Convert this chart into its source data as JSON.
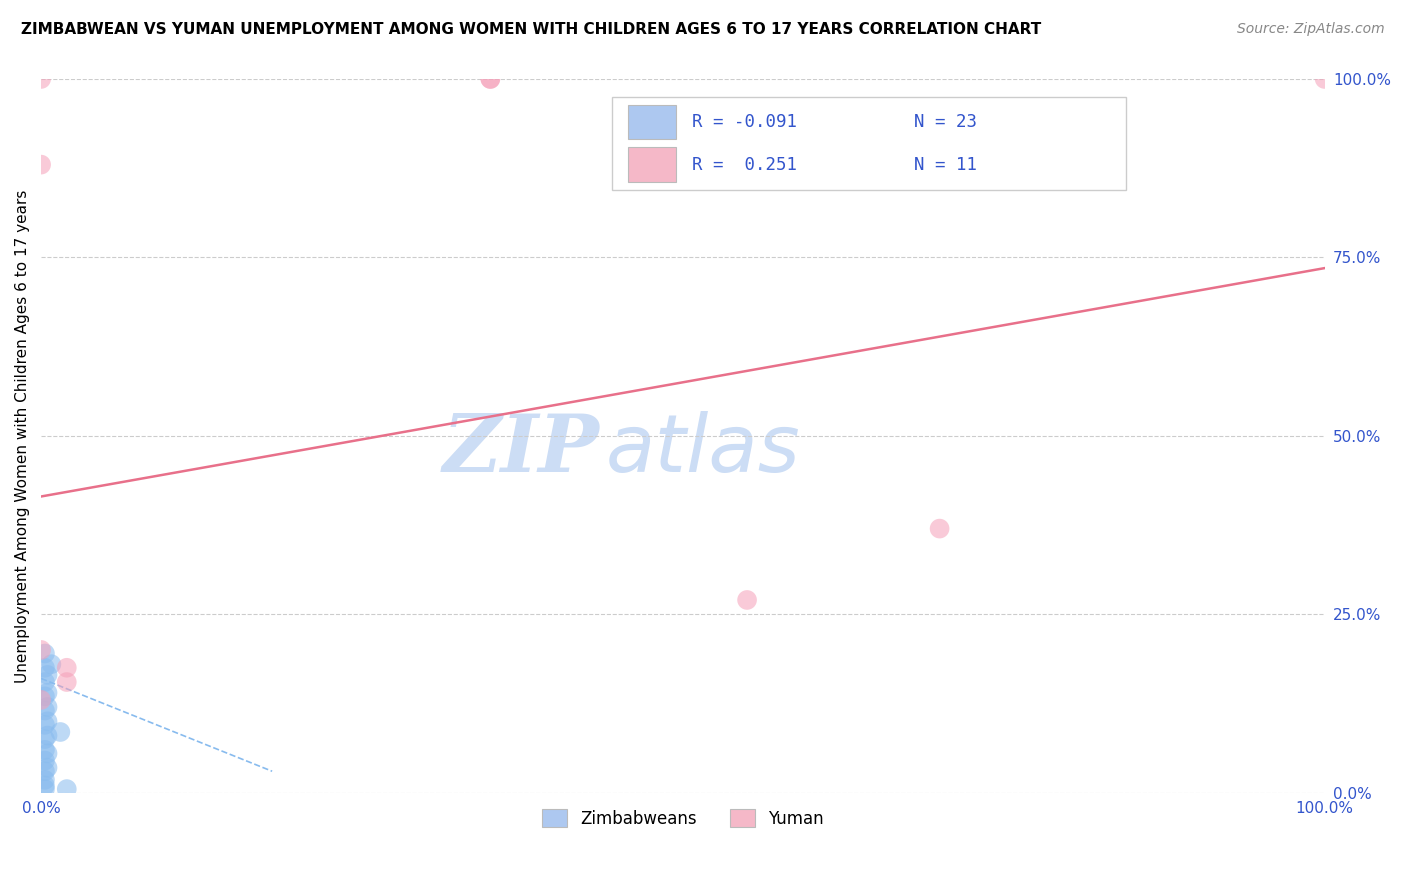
{
  "title": "ZIMBABWEAN VS YUMAN UNEMPLOYMENT AMONG WOMEN WITH CHILDREN AGES 6 TO 17 YEARS CORRELATION CHART",
  "source": "Source: ZipAtlas.com",
  "ylabel_label": "Unemployment Among Women with Children Ages 6 to 17 years",
  "ytick_labels": [
    "0.0%",
    "25.0%",
    "50.0%",
    "75.0%",
    "100.0%"
  ],
  "ytick_values": [
    0.0,
    0.25,
    0.5,
    0.75,
    1.0
  ],
  "xlim": [
    0.0,
    1.0
  ],
  "ylim": [
    0.0,
    1.0
  ],
  "legend_entries": [
    {
      "label_r": "R = -0.091",
      "label_n": "N = 23",
      "color": "#adc8f0"
    },
    {
      "label_r": "R =  0.251",
      "label_n": "N = 11",
      "color": "#f5b8c8"
    }
  ],
  "legend_bottom_labels": [
    "Zimbabweans",
    "Yuman"
  ],
  "legend_bottom_colors": [
    "#adc8f0",
    "#f5b8c8"
  ],
  "watermark_zip": "ZIP",
  "watermark_atlas": "atlas",
  "watermark_color": "#ccddf5",
  "grid_color": "#cccccc",
  "grid_style": "--",
  "zimbabwean_points": [
    [
      0.003,
      0.195
    ],
    [
      0.003,
      0.175
    ],
    [
      0.003,
      0.155
    ],
    [
      0.003,
      0.135
    ],
    [
      0.003,
      0.115
    ],
    [
      0.003,
      0.095
    ],
    [
      0.003,
      0.075
    ],
    [
      0.003,
      0.06
    ],
    [
      0.003,
      0.045
    ],
    [
      0.003,
      0.03
    ],
    [
      0.003,
      0.018
    ],
    [
      0.003,
      0.01
    ],
    [
      0.003,
      0.005
    ],
    [
      0.005,
      0.165
    ],
    [
      0.005,
      0.14
    ],
    [
      0.005,
      0.12
    ],
    [
      0.005,
      0.1
    ],
    [
      0.005,
      0.08
    ],
    [
      0.005,
      0.055
    ],
    [
      0.005,
      0.035
    ],
    [
      0.008,
      0.18
    ],
    [
      0.015,
      0.085
    ],
    [
      0.02,
      0.005
    ]
  ],
  "yuman_points": [
    [
      0.0,
      0.88
    ],
    [
      0.35,
      1.0
    ],
    [
      0.0,
      1.0
    ],
    [
      0.0,
      0.2
    ],
    [
      0.02,
      0.175
    ],
    [
      0.02,
      0.155
    ],
    [
      0.55,
      0.27
    ],
    [
      0.7,
      0.37
    ],
    [
      1.0,
      1.0
    ],
    [
      0.35,
      1.0
    ],
    [
      0.0,
      0.13
    ]
  ],
  "zimbabwean_line": {
    "x": [
      0.0,
      0.18
    ],
    "y": [
      0.16,
      0.03
    ],
    "color": "#88bbee",
    "style": "--",
    "lw": 1.2
  },
  "yuman_line": {
    "x": [
      0.0,
      1.0
    ],
    "y": [
      0.415,
      0.735
    ],
    "color": "#e8708a",
    "style": "-",
    "lw": 1.8
  },
  "dot_size": 200,
  "dot_alpha": 0.55,
  "zimbabwean_color": "#88bbee",
  "yuman_color": "#f5a0b8",
  "title_fontsize": 11,
  "source_fontsize": 10,
  "axis_tick_color": "#3355cc",
  "axis_tick_fontsize": 11
}
